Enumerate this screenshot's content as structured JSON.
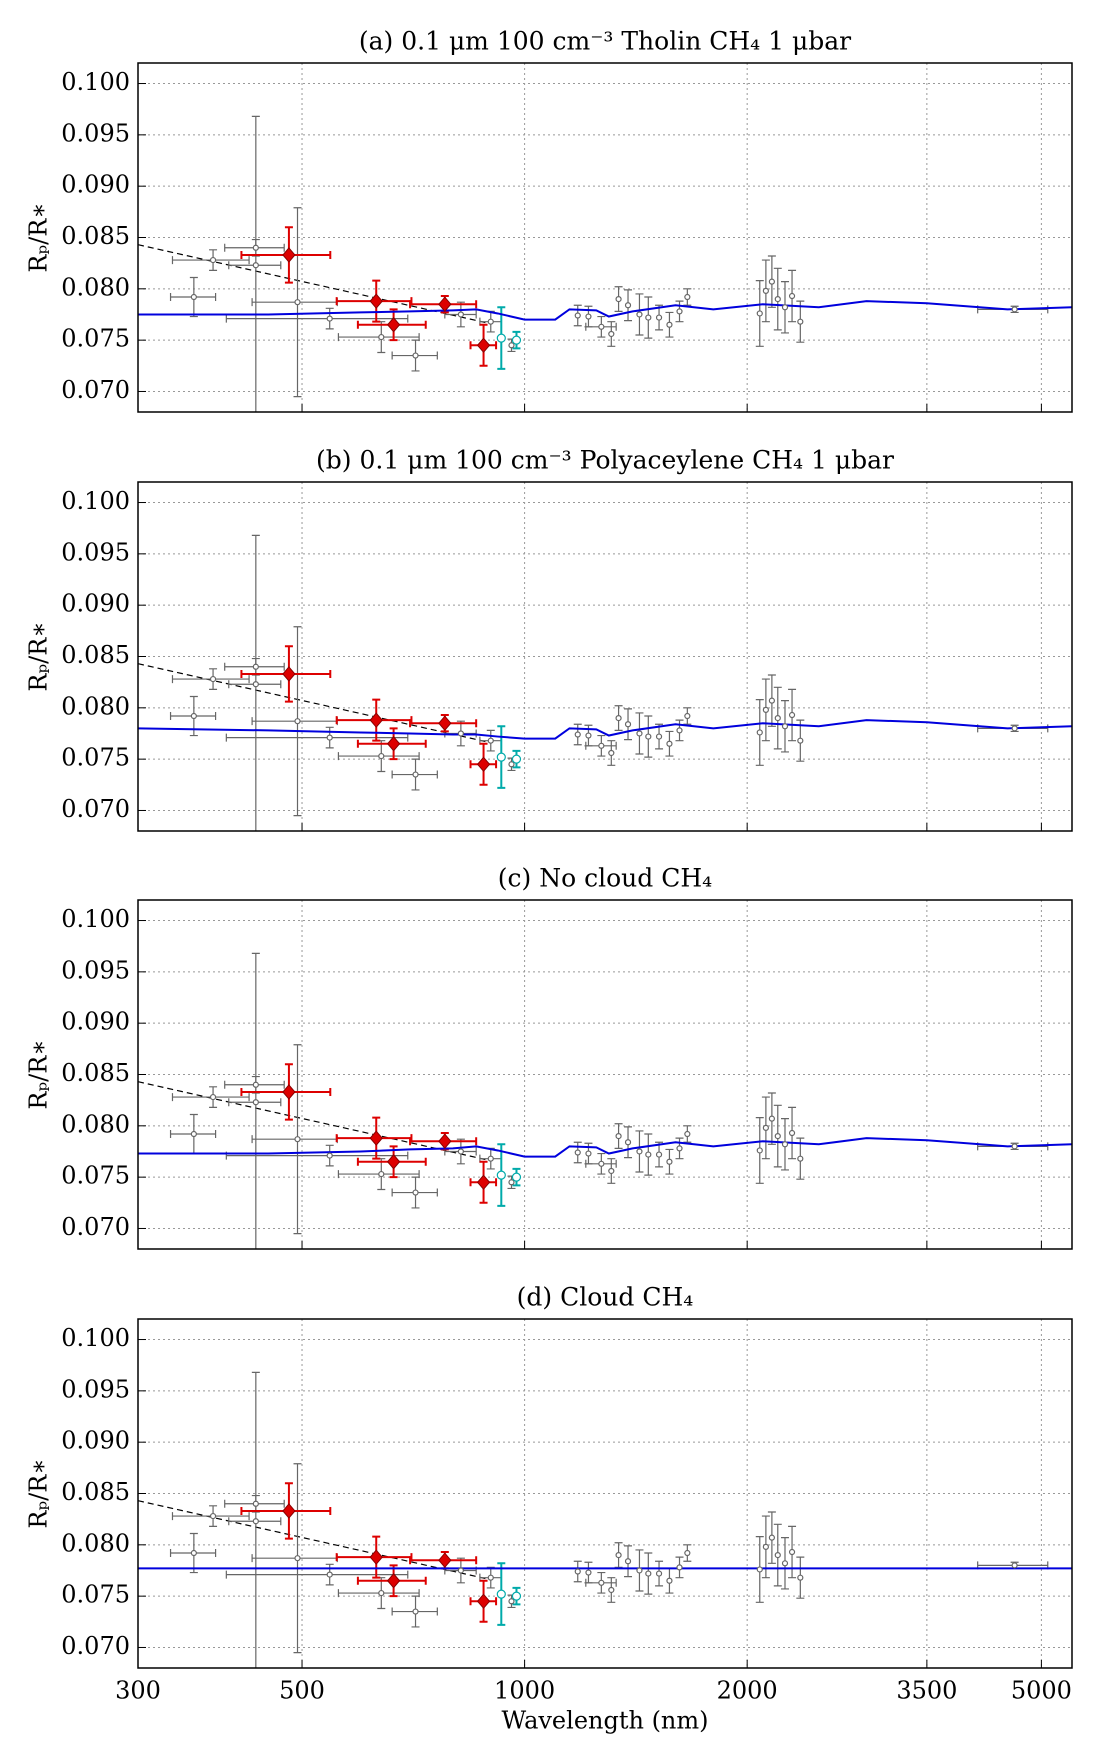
{
  "chart_data": {
    "type": "errorbar",
    "xlabel": "Wavelength (nm)",
    "ylabel": "Rₚ/R∗",
    "xscale": "log",
    "grid": true,
    "xlim": [
      300,
      5500
    ],
    "ylim": [
      0.068,
      0.102
    ],
    "xticks": [
      300,
      500,
      1000,
      2000,
      3500,
      5000
    ],
    "yticks": [
      {
        "value": 0.07,
        "label": "0.070"
      },
      {
        "value": 0.075,
        "label": "0.075"
      },
      {
        "value": 0.08,
        "label": "0.080"
      },
      {
        "value": 0.085,
        "label": "0.085"
      },
      {
        "value": 0.09,
        "label": "0.090"
      },
      {
        "value": 0.095,
        "label": "0.095"
      },
      {
        "value": 0.1,
        "label": "0.100"
      }
    ],
    "observations": [
      {
        "color": "#666666",
        "marker": "circle",
        "x": [
          357,
          379,
          433,
          433,
          493,
          545,
          640,
          712,
          820,
          900,
          960,
          1180,
          1220,
          1270,
          1310,
          1340,
          1380,
          1430,
          1470,
          1520,
          1570,
          1620,
          1660,
          2080,
          2120,
          2160,
          2200,
          2250,
          2300,
          2360,
          4600
        ],
        "xerr": [
          25,
          45,
          35,
          40,
          65,
          150,
          80,
          50,
          40,
          30,
          null,
          null,
          null,
          60,
          null,
          null,
          null,
          null,
          null,
          null,
          null,
          null,
          null,
          null,
          null,
          null,
          null,
          null,
          null,
          null,
          500
        ],
        "values": [
          0.0792,
          0.0828,
          0.0823,
          0.084,
          0.0787,
          0.0771,
          0.0753,
          0.0735,
          0.0775,
          0.0768,
          0.0745,
          0.0774,
          0.0773,
          0.0763,
          0.0756,
          0.079,
          0.0784,
          0.0775,
          0.0772,
          0.0772,
          0.0765,
          0.0778,
          0.0792,
          0.0776,
          0.0798,
          0.0807,
          0.079,
          0.0782,
          0.0793,
          0.0768,
          0.078
        ],
        "yerr": [
          0.0019,
          0.001,
          0.0145,
          0.0008,
          0.0092,
          0.001,
          0.0015,
          0.0015,
          0.0012,
          0.001,
          0.0006,
          0.001,
          0.001,
          0.001,
          0.0012,
          0.0012,
          0.0015,
          0.002,
          0.002,
          0.0012,
          0.0012,
          0.001,
          0.0008,
          0.0032,
          0.003,
          0.0025,
          0.003,
          0.0025,
          0.0025,
          0.002,
          0.0003
        ]
      },
      {
        "color": "#dd0000",
        "marker": "diamond",
        "x": [
          480,
          630,
          665,
          780,
          880
        ],
        "xerr": [
          66,
          73,
          70,
          80,
          35
        ],
        "values": [
          0.0833,
          0.0788,
          0.0765,
          0.0785,
          0.0745
        ],
        "yerr": [
          0.0027,
          0.002,
          0.0015,
          0.0008,
          0.002
        ]
      },
      {
        "color": "#00aaaa",
        "marker": "circle",
        "x": [
          930,
          975
        ],
        "xerr": [
          null,
          null
        ],
        "values": [
          0.0752,
          0.075
        ],
        "yerr": [
          0.003,
          0.0008
        ]
      }
    ],
    "trend": {
      "color": "#000000",
      "x": [
        300,
        900
      ],
      "values": [
        0.0843,
        0.0766
      ]
    },
    "panels": [
      {
        "title": "(a) 0.1 μm 100 cm⁻³ Tholin CH₄ 1 μbar",
        "color": "#0000dd",
        "x": [
          300,
          450,
          600,
          700,
          800,
          860,
          920,
          1000,
          1100,
          1150,
          1250,
          1300,
          1400,
          1600,
          1800,
          2100,
          2500,
          2900,
          3500,
          4500,
          5500
        ],
        "values": [
          0.0775,
          0.0775,
          0.0777,
          0.0778,
          0.0779,
          0.078,
          0.0776,
          0.077,
          0.077,
          0.078,
          0.0779,
          0.0773,
          0.0778,
          0.0784,
          0.078,
          0.0785,
          0.0782,
          0.0788,
          0.0786,
          0.078,
          0.0782
        ]
      },
      {
        "title": "(b) 0.1 μm 100 cm⁻³ Polyaceylene CH₄ 1 μbar",
        "color": "#0000dd",
        "x": [
          300,
          450,
          600,
          700,
          800,
          860,
          920,
          1000,
          1100,
          1150,
          1250,
          1300,
          1400,
          1600,
          1800,
          2100,
          2500,
          2900,
          3500,
          4500,
          5500
        ],
        "values": [
          0.078,
          0.0778,
          0.0776,
          0.0775,
          0.0774,
          0.0774,
          0.0772,
          0.077,
          0.077,
          0.078,
          0.0779,
          0.0773,
          0.0778,
          0.0784,
          0.078,
          0.0785,
          0.0782,
          0.0788,
          0.0786,
          0.078,
          0.0782
        ]
      },
      {
        "title": "(c) No cloud CH₄",
        "color": "#0000dd",
        "x": [
          300,
          450,
          600,
          700,
          800,
          860,
          920,
          1000,
          1100,
          1150,
          1250,
          1300,
          1400,
          1600,
          1800,
          2100,
          2500,
          2900,
          3500,
          4500,
          5500
        ],
        "values": [
          0.0773,
          0.0773,
          0.0775,
          0.0777,
          0.0778,
          0.078,
          0.0776,
          0.077,
          0.077,
          0.078,
          0.0779,
          0.0773,
          0.0778,
          0.0784,
          0.078,
          0.0785,
          0.0782,
          0.0788,
          0.0786,
          0.078,
          0.0782
        ]
      },
      {
        "title": "(d) Cloud CH₄",
        "color": "#0000dd",
        "x": [
          300,
          5500
        ],
        "values": [
          0.0777,
          0.0777
        ]
      }
    ]
  }
}
